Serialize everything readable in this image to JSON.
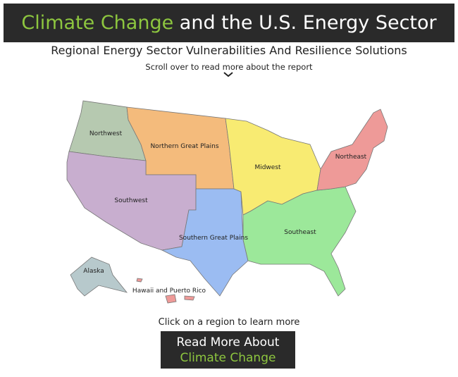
{
  "header": {
    "title_highlight": "Climate Change",
    "title_rest": "and the U.S. Energy Sector",
    "subtitle": "Regional Energy Sector Vulnerabilities And Resilience Solutions",
    "scroll_hint": "Scroll over to read more about the report"
  },
  "map": {
    "regions": [
      {
        "name": "Northwest"
      },
      {
        "name": "Northern Great Plains"
      },
      {
        "name": "Southwest"
      },
      {
        "name": "Southern Great Plains"
      },
      {
        "name": "Midwest"
      },
      {
        "name": "Southeast"
      },
      {
        "name": "Northeast"
      },
      {
        "name": "Alaska"
      },
      {
        "name": "Hawaii and Puerto Rico"
      }
    ],
    "instruction": "Click on a region to learn more"
  },
  "button": {
    "line1": "Read More About",
    "line2": "Climate Change"
  }
}
